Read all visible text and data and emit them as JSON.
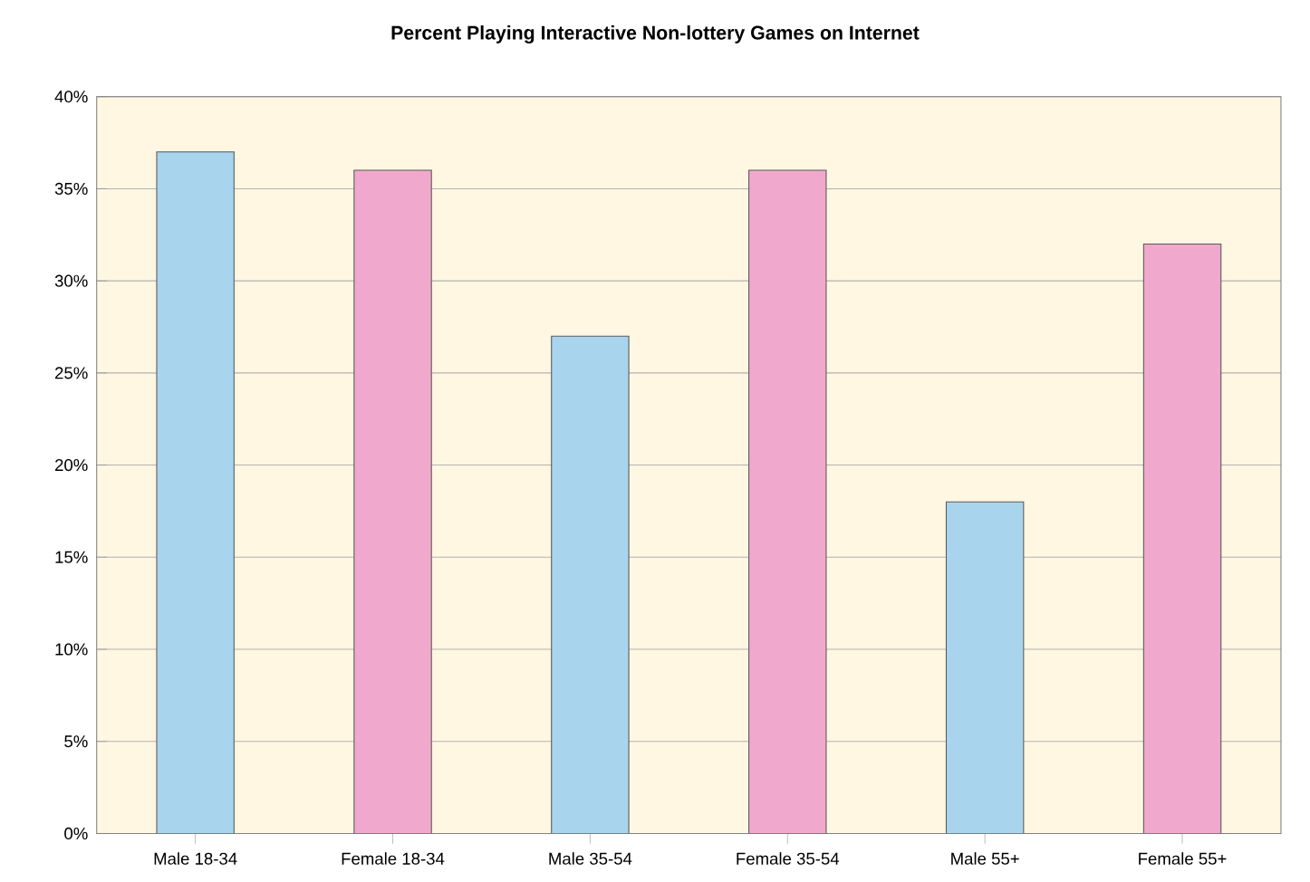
{
  "chart_data": {
    "type": "bar",
    "title": "Percent Playing Interactive Non-lottery Games on Internet",
    "categories": [
      "Male 18-34",
      "Female 18-34",
      "Male 35-54",
      "Female 35-54",
      "Male 55+",
      "Female 55+"
    ],
    "values": [
      37,
      36,
      27,
      36,
      18,
      32
    ],
    "colors": [
      "#a8d4ee",
      "#f0a8cc",
      "#a8d4ee",
      "#f0a8cc",
      "#a8d4ee",
      "#f0a8cc"
    ],
    "ylim": [
      0,
      40
    ],
    "yticks": [
      {
        "value": 0,
        "label": "0%"
      },
      {
        "value": 5,
        "label": "5%"
      },
      {
        "value": 10,
        "label": "10%"
      },
      {
        "value": 15,
        "label": "15%"
      },
      {
        "value": 20,
        "label": "20%"
      },
      {
        "value": 25,
        "label": "25%"
      },
      {
        "value": 30,
        "label": "30%"
      },
      {
        "value": 35,
        "label": "35%"
      },
      {
        "value": 40,
        "label": "40%"
      }
    ],
    "grid": "y"
  }
}
